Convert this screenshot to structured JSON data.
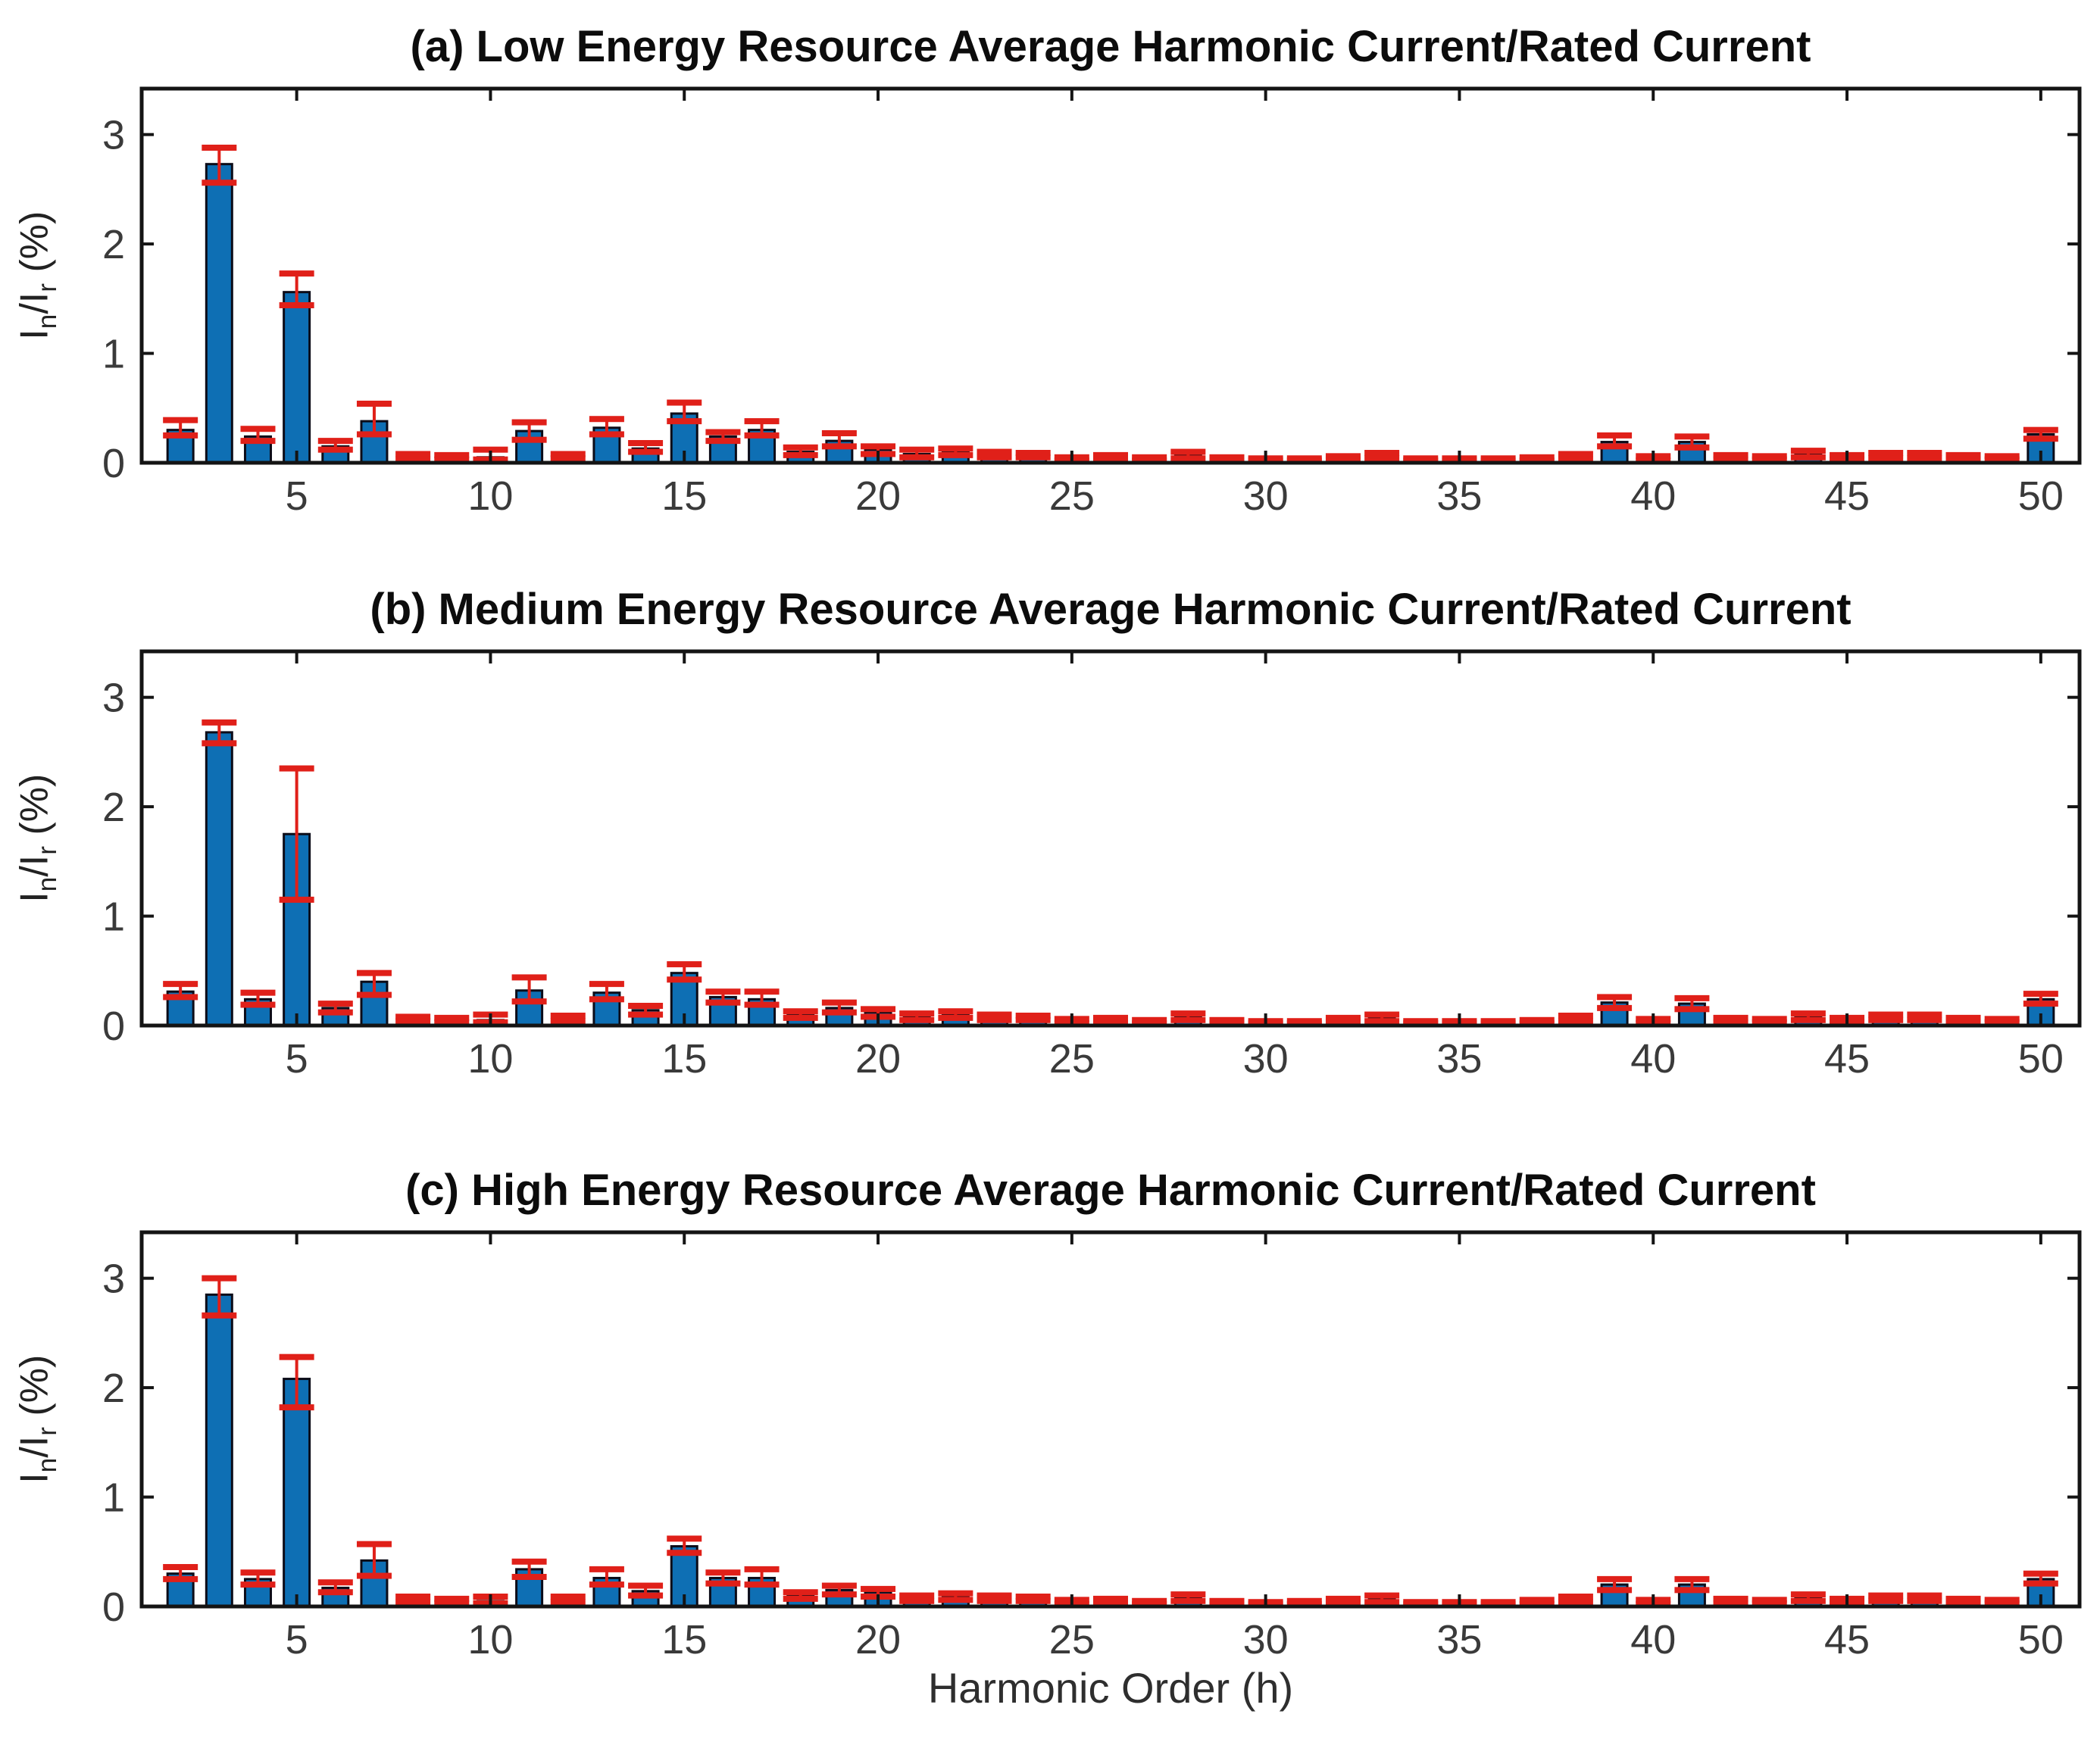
{
  "labels": {
    "y_base": "I",
    "y_sub1": "n",
    "y_mid": "/I",
    "y_sub2": "r",
    "y_suffix": " (%)",
    "xlabel": "Harmonic Order (h)"
  },
  "colors": {
    "bar_fill": "#0e6fb4",
    "bar_edge": "#0c0c18",
    "error_red": "#e02019",
    "axis": "#141414",
    "tick_label": "#3a3a3a",
    "background": "#ffffff"
  },
  "chart_data": [
    {
      "type": "bar",
      "panel": "a",
      "title": "(a) Low Energy Resource Average Harmonic Current/Rated Current",
      "ylabel": "I_n/I_r (%)",
      "xlabel": "",
      "xlim": [
        1,
        51
      ],
      "ylim": [
        0,
        3.42
      ],
      "xticks": [
        5,
        10,
        15,
        20,
        25,
        30,
        35,
        40,
        45,
        50
      ],
      "yticks": [
        0,
        1,
        2,
        3
      ],
      "grid": false,
      "legend": "none",
      "x": [
        2,
        3,
        4,
        5,
        6,
        7,
        8,
        9,
        10,
        11,
        12,
        13,
        14,
        15,
        16,
        17,
        18,
        19,
        20,
        21,
        22,
        23,
        24,
        25,
        26,
        27,
        28,
        29,
        30,
        31,
        32,
        33,
        34,
        35,
        36,
        37,
        38,
        39,
        40,
        41,
        42,
        43,
        44,
        45,
        46,
        47,
        48,
        49,
        50
      ],
      "values": [
        0.3,
        2.73,
        0.24,
        1.56,
        0.15,
        0.38,
        0.05,
        0.05,
        0.05,
        0.29,
        0.06,
        0.32,
        0.13,
        0.45,
        0.24,
        0.3,
        0.1,
        0.2,
        0.12,
        0.08,
        0.1,
        0.08,
        0.07,
        0.03,
        0.05,
        0.03,
        0.07,
        0.03,
        0.03,
        0.03,
        0.04,
        0.07,
        0.03,
        0.03,
        0.03,
        0.03,
        0.05,
        0.19,
        0.04,
        0.19,
        0.05,
        0.04,
        0.08,
        0.05,
        0.07,
        0.07,
        0.05,
        0.04,
        0.26
      ],
      "error_low": [
        0.25,
        2.56,
        0.2,
        1.44,
        0.12,
        0.26,
        0.03,
        0.03,
        0.03,
        0.21,
        0.04,
        0.26,
        0.1,
        0.38,
        0.2,
        0.25,
        0.07,
        0.15,
        0.08,
        0.05,
        0.07,
        0.05,
        0.05,
        0.02,
        0.03,
        0.02,
        0.04,
        0.02,
        0.02,
        0.02,
        0.03,
        0.04,
        0.02,
        0.02,
        0.02,
        0.02,
        0.03,
        0.15,
        0.02,
        0.14,
        0.03,
        0.03,
        0.05,
        0.03,
        0.04,
        0.04,
        0.03,
        0.03,
        0.22
      ],
      "error_high": [
        0.39,
        2.88,
        0.31,
        1.73,
        0.2,
        0.54,
        0.08,
        0.07,
        0.12,
        0.37,
        0.08,
        0.4,
        0.18,
        0.55,
        0.28,
        0.38,
        0.14,
        0.27,
        0.15,
        0.12,
        0.13,
        0.1,
        0.09,
        0.05,
        0.07,
        0.05,
        0.1,
        0.05,
        0.04,
        0.04,
        0.06,
        0.09,
        0.04,
        0.04,
        0.04,
        0.05,
        0.08,
        0.25,
        0.06,
        0.24,
        0.07,
        0.06,
        0.11,
        0.07,
        0.09,
        0.09,
        0.07,
        0.06,
        0.3
      ]
    },
    {
      "type": "bar",
      "panel": "b",
      "title": "(b) Medium Energy Resource Average Harmonic Current/Rated Current",
      "ylabel": "I_n/I_r (%)",
      "xlabel": "",
      "xlim": [
        1,
        51
      ],
      "ylim": [
        0,
        3.42
      ],
      "xticks": [
        5,
        10,
        15,
        20,
        25,
        30,
        35,
        40,
        45,
        50
      ],
      "yticks": [
        0,
        1,
        2,
        3
      ],
      "grid": false,
      "legend": "none",
      "x": [
        2,
        3,
        4,
        5,
        6,
        7,
        8,
        9,
        10,
        11,
        12,
        13,
        14,
        15,
        16,
        17,
        18,
        19,
        20,
        21,
        22,
        23,
        24,
        25,
        26,
        27,
        28,
        29,
        30,
        31,
        32,
        33,
        34,
        35,
        36,
        37,
        38,
        39,
        40,
        41,
        42,
        43,
        44,
        45,
        46,
        47,
        48,
        49,
        50
      ],
      "values": [
        0.31,
        2.68,
        0.24,
        1.75,
        0.16,
        0.4,
        0.06,
        0.05,
        0.05,
        0.32,
        0.07,
        0.3,
        0.14,
        0.48,
        0.26,
        0.24,
        0.1,
        0.16,
        0.12,
        0.08,
        0.1,
        0.08,
        0.07,
        0.04,
        0.05,
        0.03,
        0.08,
        0.03,
        0.03,
        0.03,
        0.05,
        0.07,
        0.03,
        0.03,
        0.03,
        0.03,
        0.06,
        0.21,
        0.04,
        0.2,
        0.05,
        0.04,
        0.08,
        0.05,
        0.07,
        0.07,
        0.05,
        0.04,
        0.24
      ],
      "error_low": [
        0.26,
        2.58,
        0.19,
        1.15,
        0.12,
        0.28,
        0.04,
        0.03,
        0.03,
        0.22,
        0.04,
        0.24,
        0.1,
        0.42,
        0.21,
        0.19,
        0.07,
        0.12,
        0.08,
        0.05,
        0.07,
        0.05,
        0.05,
        0.02,
        0.03,
        0.02,
        0.05,
        0.02,
        0.02,
        0.02,
        0.03,
        0.04,
        0.02,
        0.02,
        0.02,
        0.02,
        0.04,
        0.16,
        0.02,
        0.15,
        0.03,
        0.03,
        0.05,
        0.03,
        0.05,
        0.05,
        0.03,
        0.03,
        0.2
      ],
      "error_high": [
        0.38,
        2.77,
        0.3,
        2.35,
        0.2,
        0.48,
        0.08,
        0.07,
        0.1,
        0.44,
        0.09,
        0.38,
        0.18,
        0.56,
        0.31,
        0.31,
        0.13,
        0.21,
        0.15,
        0.11,
        0.13,
        0.1,
        0.09,
        0.06,
        0.07,
        0.05,
        0.11,
        0.05,
        0.04,
        0.04,
        0.07,
        0.1,
        0.04,
        0.04,
        0.04,
        0.05,
        0.09,
        0.26,
        0.06,
        0.25,
        0.07,
        0.06,
        0.11,
        0.07,
        0.1,
        0.1,
        0.07,
        0.06,
        0.29
      ]
    },
    {
      "type": "bar",
      "panel": "c",
      "title": "(c) High Energy Resource Average Harmonic Current/Rated Current",
      "ylabel": "I_n/I_r (%)",
      "xlabel": "Harmonic Order (h)",
      "xlim": [
        1,
        51
      ],
      "ylim": [
        0,
        3.42
      ],
      "xticks": [
        5,
        10,
        15,
        20,
        25,
        30,
        35,
        40,
        45,
        50
      ],
      "yticks": [
        0,
        1,
        2,
        3
      ],
      "grid": false,
      "legend": "none",
      "x": [
        2,
        3,
        4,
        5,
        6,
        7,
        8,
        9,
        10,
        11,
        12,
        13,
        14,
        15,
        16,
        17,
        18,
        19,
        20,
        21,
        22,
        23,
        24,
        25,
        26,
        27,
        28,
        29,
        30,
        31,
        32,
        33,
        34,
        35,
        36,
        37,
        38,
        39,
        40,
        41,
        42,
        43,
        44,
        45,
        46,
        47,
        48,
        49,
        50
      ],
      "values": [
        0.3,
        2.85,
        0.25,
        2.08,
        0.17,
        0.42,
        0.06,
        0.05,
        0.05,
        0.34,
        0.07,
        0.26,
        0.14,
        0.55,
        0.26,
        0.26,
        0.1,
        0.15,
        0.13,
        0.07,
        0.09,
        0.08,
        0.07,
        0.04,
        0.05,
        0.03,
        0.08,
        0.03,
        0.03,
        0.03,
        0.05,
        0.07,
        0.03,
        0.03,
        0.03,
        0.04,
        0.06,
        0.2,
        0.04,
        0.2,
        0.05,
        0.04,
        0.08,
        0.05,
        0.07,
        0.07,
        0.05,
        0.04,
        0.25
      ],
      "error_low": [
        0.25,
        2.66,
        0.2,
        1.82,
        0.13,
        0.28,
        0.04,
        0.03,
        0.03,
        0.27,
        0.04,
        0.2,
        0.1,
        0.49,
        0.21,
        0.2,
        0.07,
        0.11,
        0.09,
        0.05,
        0.06,
        0.05,
        0.05,
        0.02,
        0.03,
        0.02,
        0.05,
        0.02,
        0.02,
        0.02,
        0.03,
        0.04,
        0.02,
        0.02,
        0.02,
        0.02,
        0.04,
        0.15,
        0.02,
        0.15,
        0.03,
        0.03,
        0.05,
        0.03,
        0.05,
        0.05,
        0.03,
        0.03,
        0.21
      ],
      "error_high": [
        0.36,
        3.0,
        0.31,
        2.28,
        0.22,
        0.57,
        0.09,
        0.07,
        0.09,
        0.41,
        0.09,
        0.34,
        0.19,
        0.62,
        0.31,
        0.34,
        0.13,
        0.19,
        0.16,
        0.1,
        0.12,
        0.1,
        0.09,
        0.06,
        0.07,
        0.05,
        0.11,
        0.05,
        0.04,
        0.05,
        0.07,
        0.1,
        0.04,
        0.04,
        0.04,
        0.06,
        0.09,
        0.25,
        0.06,
        0.25,
        0.07,
        0.06,
        0.11,
        0.07,
        0.1,
        0.1,
        0.07,
        0.06,
        0.3
      ]
    }
  ]
}
